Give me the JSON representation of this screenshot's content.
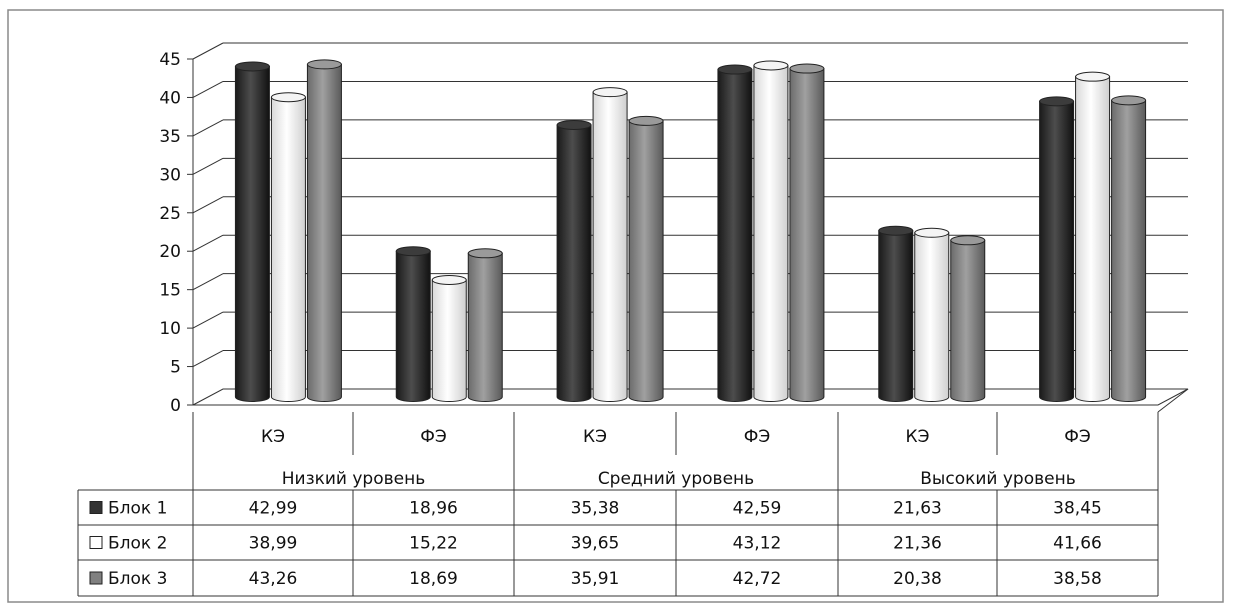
{
  "chart_data": {
    "type": "bar",
    "subcategories": [
      "КЭ",
      "ФЭ",
      "КЭ",
      "ФЭ",
      "КЭ",
      "ФЭ"
    ],
    "groups": [
      "Низкий уровень",
      "Средний уровень",
      "Высокий уровень"
    ],
    "series": [
      {
        "name": "Блок 1",
        "color": "#333333",
        "values": [
          42.99,
          18.96,
          35.38,
          42.59,
          21.63,
          38.45
        ],
        "labels": [
          "42,99",
          "18,96",
          "35,38",
          "42,59",
          "21,63",
          "38,45"
        ]
      },
      {
        "name": "Блок 2",
        "color": "#ffffff",
        "values": [
          38.99,
          15.22,
          39.65,
          43.12,
          21.36,
          41.66
        ],
        "labels": [
          "38,99",
          "15,22",
          "39,65",
          "43,12",
          "21,36",
          "41,66"
        ]
      },
      {
        "name": "Блок 3",
        "color": "#808080",
        "values": [
          43.26,
          18.69,
          35.91,
          42.72,
          20.38,
          38.58
        ],
        "labels": [
          "43,26",
          "18,69",
          "35,91",
          "42,72",
          "20,38",
          "38,58"
        ]
      }
    ],
    "yticks": [
      "0",
      "5",
      "10",
      "15",
      "20",
      "25",
      "30",
      "35",
      "40",
      "45"
    ],
    "ylim": [
      0,
      45
    ],
    "grid": true,
    "legend": "data-table-left"
  }
}
